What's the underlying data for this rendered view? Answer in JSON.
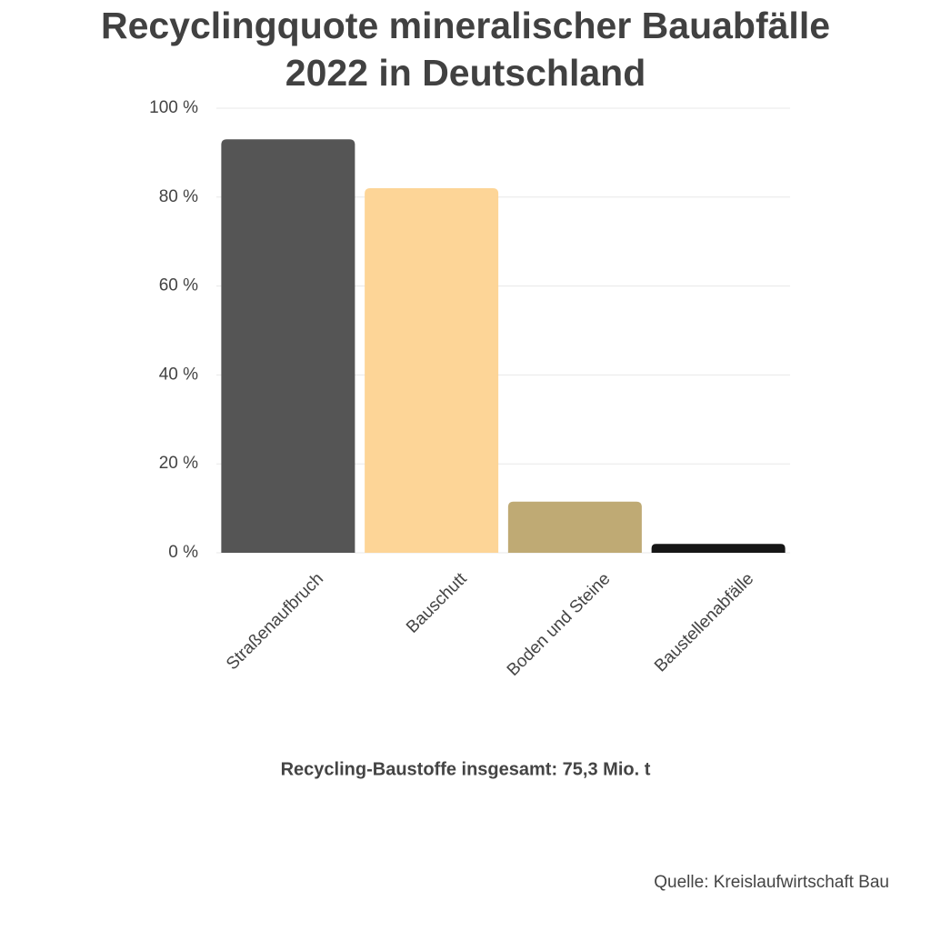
{
  "chart_data": {
    "type": "bar",
    "title": "Recyclingquote mineralischer Bauabfälle 2022 in Deutschland",
    "categories": [
      "Straßenaufbruch",
      "Bauschutt",
      "Boden und Steine",
      "Baustellenabfälle"
    ],
    "values": [
      93,
      82,
      11.5,
      2
    ],
    "colors": [
      "#555555",
      "#fdd597",
      "#bfaa74",
      "#161616"
    ],
    "ylim": [
      0,
      100
    ],
    "yticks": [
      {
        "value": 0,
        "label": "0 %"
      },
      {
        "value": 20,
        "label": "20 %"
      },
      {
        "value": 40,
        "label": "40 %"
      },
      {
        "value": 60,
        "label": "60 %"
      },
      {
        "value": 80,
        "label": "80 %"
      },
      {
        "value": 100,
        "label": "100 %"
      }
    ],
    "grid": true,
    "annotation": "Recycling-Baustoffe insgesamt: 75,3 Mio. t",
    "source": "Quelle: Kreislaufwirtschaft Bau"
  }
}
